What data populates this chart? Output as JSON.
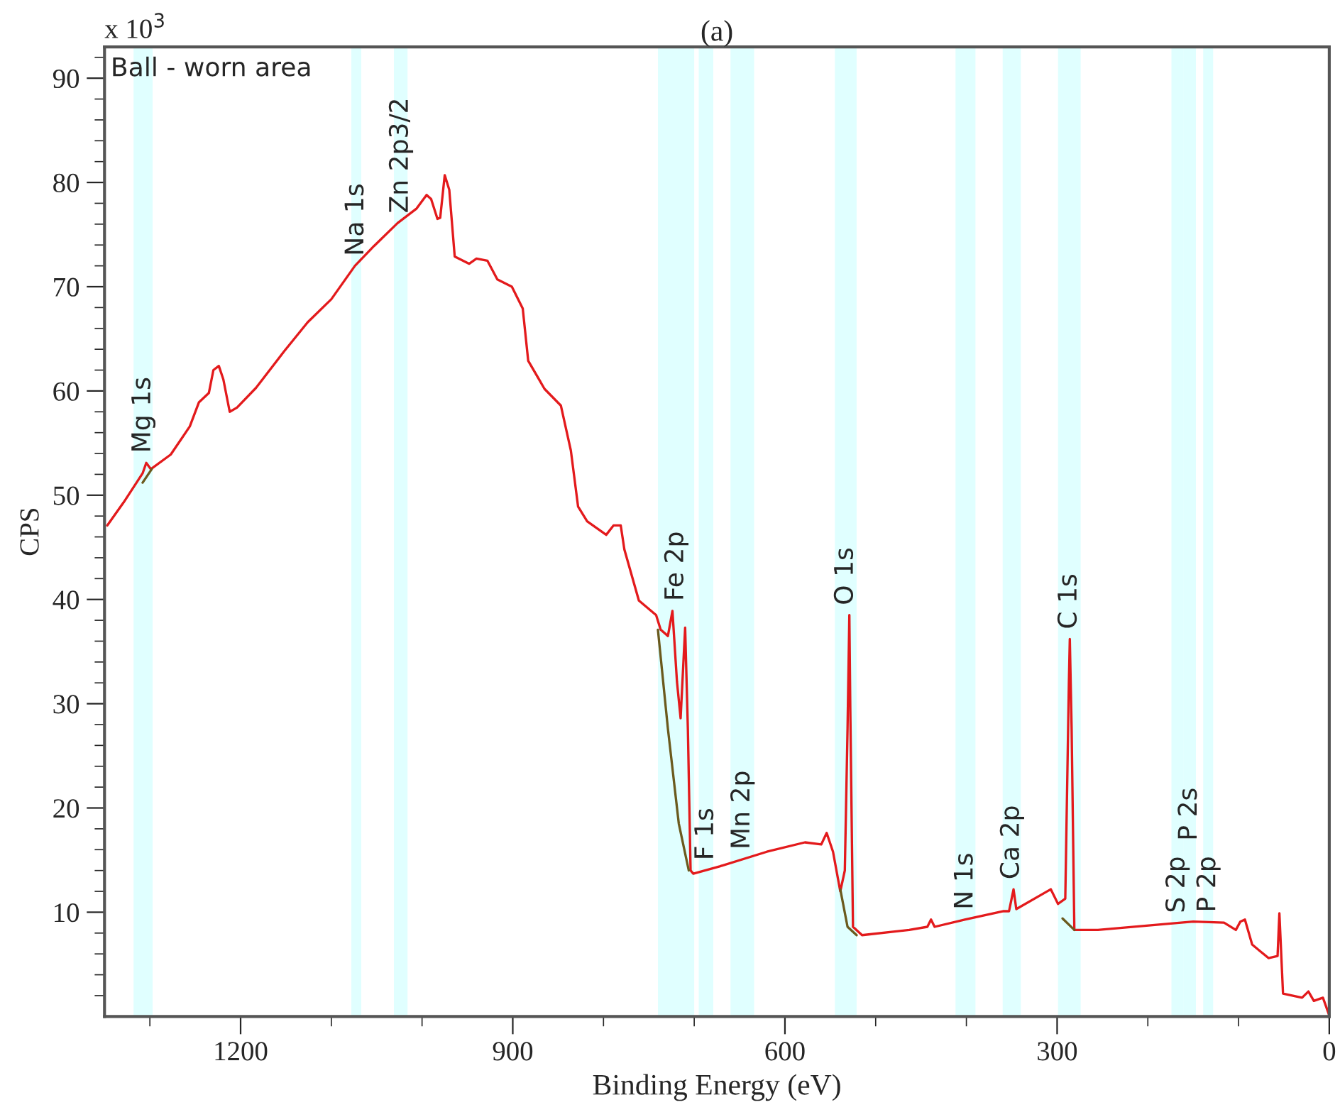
{
  "chart_data": {
    "type": "line",
    "title": "(a)",
    "xlabel": "Binding Energy (eV)",
    "ylabel": "CPS",
    "xlim": [
      1350,
      0
    ],
    "xticks": [
      {
        "value": 1300,
        "label": null
      },
      1200,
      {
        "value": 1100,
        "label": null
      },
      {
        "value": 1000,
        "label": null
      },
      900,
      {
        "value": 800,
        "label": null
      },
      {
        "value": 700,
        "label": null
      },
      600,
      {
        "value": 500,
        "label": null
      },
      {
        "value": 400,
        "label": null
      },
      300,
      {
        "value": 200,
        "label": null
      },
      {
        "value": 100,
        "label": null
      },
      0
    ],
    "ylim": [
      0,
      93
    ],
    "yticks": [
      {
        "value": 2,
        "label": null
      },
      {
        "value": 4,
        "label": null
      },
      {
        "value": 6,
        "label": null
      },
      {
        "value": 8,
        "label": null
      },
      10,
      {
        "value": 12,
        "label": null
      },
      {
        "value": 14,
        "label": null
      },
      {
        "value": 16,
        "label": null
      },
      {
        "value": 18,
        "label": null
      },
      20,
      {
        "value": 22,
        "label": null
      },
      {
        "value": 24,
        "label": null
      },
      {
        "value": 26,
        "label": null
      },
      {
        "value": 28,
        "label": null
      },
      30,
      {
        "value": 32,
        "label": null
      },
      {
        "value": 34,
        "label": null
      },
      {
        "value": 36,
        "label": null
      },
      {
        "value": 38,
        "label": null
      },
      40,
      {
        "value": 42,
        "label": null
      },
      {
        "value": 44,
        "label": null
      },
      {
        "value": 46,
        "label": null
      },
      {
        "value": 48,
        "label": null
      },
      50,
      {
        "value": 52,
        "label": null
      },
      {
        "value": 54,
        "label": null
      },
      {
        "value": 56,
        "label": null
      },
      {
        "value": 58,
        "label": null
      },
      60,
      {
        "value": 62,
        "label": null
      },
      {
        "value": 64,
        "label": null
      },
      {
        "value": 66,
        "label": null
      },
      {
        "value": 68,
        "label": null
      },
      70,
      {
        "value": 72,
        "label": null
      },
      {
        "value": 74,
        "label": null
      },
      {
        "value": 76,
        "label": null
      },
      {
        "value": 78,
        "label": null
      },
      80,
      {
        "value": 82,
        "label": null
      },
      {
        "value": 84,
        "label": null
      },
      {
        "value": 86,
        "label": null
      },
      {
        "value": 88,
        "label": null
      },
      90,
      {
        "value": 92,
        "label": null
      }
    ],
    "grid": false,
    "legend": false,
    "series": [
      {
        "color": "#e31a1c",
        "x": [
          1347,
          1329,
          1308,
          1304,
          1299,
          1277,
          1256,
          1246,
          1235,
          1230,
          1224,
          1219,
          1212,
          1204,
          1183,
          1152,
          1126,
          1100,
          1074,
          1053,
          1027,
          1006,
          995,
          990,
          983,
          980,
          975,
          970,
          964,
          948,
          940,
          928,
          917,
          901,
          889,
          883,
          865,
          847,
          836,
          828,
          818,
          797,
          789,
          781,
          777,
          761,
          742,
          737,
          729,
          724,
          719,
          715,
          710,
          707,
          704,
          701,
          672,
          620,
          578,
          560,
          554,
          547,
          539,
          534,
          531,
          529,
          528,
          525,
          515,
          463,
          443,
          439,
          435,
          401,
          359,
          353,
          348,
          345,
          307,
          299,
          291,
          287,
          286,
          284,
          281,
          255,
          150,
          116,
          103,
          98,
          93,
          85,
          67,
          57,
          55,
          51,
          30,
          23,
          17,
          7,
          0
        ],
        "values": [
          47.1,
          49.3,
          52.1,
          53.1,
          52.5,
          53.9,
          56.6,
          58.9,
          59.8,
          62.0,
          62.4,
          61.1,
          58.0,
          58.4,
          60.3,
          63.8,
          66.6,
          68.8,
          72.0,
          73.9,
          76.1,
          77.5,
          78.8,
          78.4,
          76.5,
          76.6,
          80.7,
          79.3,
          72.9,
          72.2,
          72.7,
          72.5,
          70.7,
          70.0,
          67.9,
          62.9,
          60.2,
          58.6,
          54.3,
          48.9,
          47.5,
          46.2,
          47.1,
          47.1,
          44.8,
          39.9,
          38.5,
          37.1,
          36.5,
          38.9,
          32.1,
          28.6,
          37.3,
          27.6,
          14.0,
          13.7,
          14.4,
          15.8,
          16.7,
          16.5,
          17.6,
          15.8,
          12.0,
          14.0,
          27.6,
          38.5,
          29.8,
          8.6,
          7.8,
          8.3,
          8.6,
          9.3,
          8.6,
          9.3,
          10.1,
          10.1,
          12.2,
          10.3,
          12.2,
          10.8,
          11.3,
          32.1,
          36.2,
          27.6,
          8.3,
          8.3,
          9.1,
          9.0,
          8.3,
          9.1,
          9.3,
          6.9,
          5.6,
          5.8,
          9.9,
          2.2,
          1.8,
          2.4,
          1.5,
          1.8,
          0.1
        ]
      },
      {
        "color": "#6b5a1e",
        "x": [
          1308,
          1298,
          1000,
          740,
          729,
          717,
          706,
          600,
          539,
          531,
          521,
          400,
          294,
          281
        ],
        "values": [
          51.2,
          52.5,
          null,
          37.1,
          27.6,
          18.5,
          14.0,
          null,
          12.2,
          8.6,
          7.8,
          null,
          9.4,
          8.3
        ]
      }
    ],
    "bands": [
      {
        "axis": "x",
        "from": 1318,
        "to": 1297,
        "color": "#e0ffff",
        "label": "Mg 1s"
      },
      {
        "axis": "x",
        "from": 1078,
        "to": 1067,
        "color": "#e0ffff",
        "label": "Na 1s"
      },
      {
        "axis": "x",
        "from": 1031,
        "to": 1016,
        "color": "#e0ffff",
        "label": "Zn 2p3/2"
      },
      {
        "axis": "x",
        "from": 740,
        "to": 700,
        "color": "#e0ffff",
        "label": "Fe 2p"
      },
      {
        "axis": "x",
        "from": 695,
        "to": 679,
        "color": "#e0ffff",
        "label": "F 1s"
      },
      {
        "axis": "x",
        "from": 660,
        "to": 634,
        "color": "#e0ffff",
        "label": "Mn 2p"
      },
      {
        "axis": "x",
        "from": 545,
        "to": 521,
        "color": "#e0ffff",
        "label": "O 1s"
      },
      {
        "axis": "x",
        "from": 412,
        "to": 390,
        "color": "#e0ffff",
        "label": "N 1s"
      },
      {
        "axis": "x",
        "from": 360,
        "to": 340,
        "color": "#e0ffff",
        "label": "Ca 2p"
      },
      {
        "axis": "x",
        "from": 299,
        "to": 274,
        "color": "#e0ffff",
        "label": "C 1s"
      },
      {
        "axis": "x",
        "from": 174,
        "to": 161,
        "color": "#e0ffff",
        "label": "S 2p"
      },
      {
        "axis": "x",
        "from": 161,
        "to": 147,
        "color": "#e0ffff",
        "label": "P 2s"
      },
      {
        "axis": "x",
        "from": 139,
        "to": 128,
        "color": "#e0ffff",
        "label": "P 2p"
      }
    ],
    "annotations": [
      "x 10$^{3}$",
      "Ball - worn area"
    ]
  }
}
